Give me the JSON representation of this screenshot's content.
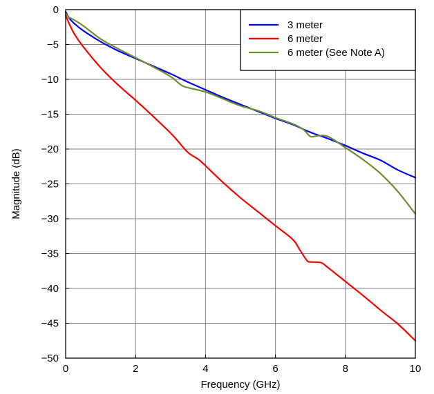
{
  "chart_data": {
    "type": "line",
    "title": "",
    "xlabel": "Frequency (GHz)",
    "ylabel": "Magnitude (dB)",
    "xlim": [
      0,
      10
    ],
    "ylim": [
      -50,
      0
    ],
    "x_ticks": [
      0,
      2,
      4,
      6,
      8,
      10
    ],
    "x_tick_labels": [
      "0",
      "2",
      "4",
      "6",
      "8",
      "10"
    ],
    "y_ticks": [
      0,
      -5,
      -10,
      -15,
      -20,
      -25,
      -30,
      -35,
      -40,
      -45,
      -50
    ],
    "y_tick_labels": [
      "0",
      "−5",
      "−10",
      "−15",
      "−20",
      "−25",
      "−30",
      "−35",
      "−40",
      "−45",
      "−50"
    ],
    "grid": true,
    "legend_position": "top-right",
    "series": [
      {
        "name": "3 meter",
        "color": "#0000ff",
        "x": [
          0,
          0.1,
          0.25,
          0.5,
          1,
          1.5,
          2,
          2.5,
          3,
          3.5,
          4,
          4.5,
          5,
          5.5,
          6,
          6.5,
          7,
          7.5,
          8,
          8.5,
          9,
          9.5,
          10
        ],
        "y": [
          -0.3,
          -1.2,
          -2.0,
          -3.0,
          -4.6,
          -5.9,
          -7.0,
          -8.1,
          -9.2,
          -10.4,
          -11.5,
          -12.6,
          -13.6,
          -14.6,
          -15.6,
          -16.5,
          -17.6,
          -18.5,
          -19.5,
          -20.6,
          -21.6,
          -23.0,
          -24.1
        ]
      },
      {
        "name": "6 meter",
        "color": "#ff0000",
        "x": [
          0,
          0.1,
          0.25,
          0.5,
          1,
          1.5,
          2,
          2.5,
          3,
          3.2,
          3.5,
          3.8,
          4,
          4.5,
          5,
          5.5,
          6,
          6.5,
          6.7,
          6.9,
          7.0,
          7.3,
          7.5,
          8,
          8.5,
          9,
          9.5,
          10
        ],
        "y": [
          -0.8,
          -2.0,
          -3.5,
          -5.3,
          -8.3,
          -10.8,
          -13.0,
          -15.3,
          -17.7,
          -18.8,
          -20.5,
          -21.5,
          -22.4,
          -24.8,
          -27.0,
          -29.0,
          -31.0,
          -33.0,
          -34.5,
          -36.0,
          -36.2,
          -36.3,
          -37.0,
          -39.0,
          -41.0,
          -43.1,
          -45.1,
          -47.5
        ]
      },
      {
        "name": "6 meter (See Note A)",
        "color": "#6e8c32",
        "x": [
          0,
          0.1,
          0.25,
          0.5,
          1,
          1.5,
          2,
          2.5,
          3,
          3.3,
          3.5,
          4,
          4.5,
          5,
          5.5,
          6,
          6.5,
          6.8,
          7.0,
          7.2,
          7.5,
          8,
          8.5,
          9,
          9.5,
          10
        ],
        "y": [
          -0.5,
          -1.1,
          -1.5,
          -2.3,
          -4.2,
          -5.6,
          -6.9,
          -8.2,
          -9.6,
          -10.8,
          -11.2,
          -11.8,
          -12.8,
          -13.8,
          -14.5,
          -15.5,
          -16.4,
          -17.2,
          -18.2,
          -18.1,
          -18.2,
          -19.8,
          -21.5,
          -23.5,
          -26.1,
          -29.3
        ]
      }
    ]
  }
}
